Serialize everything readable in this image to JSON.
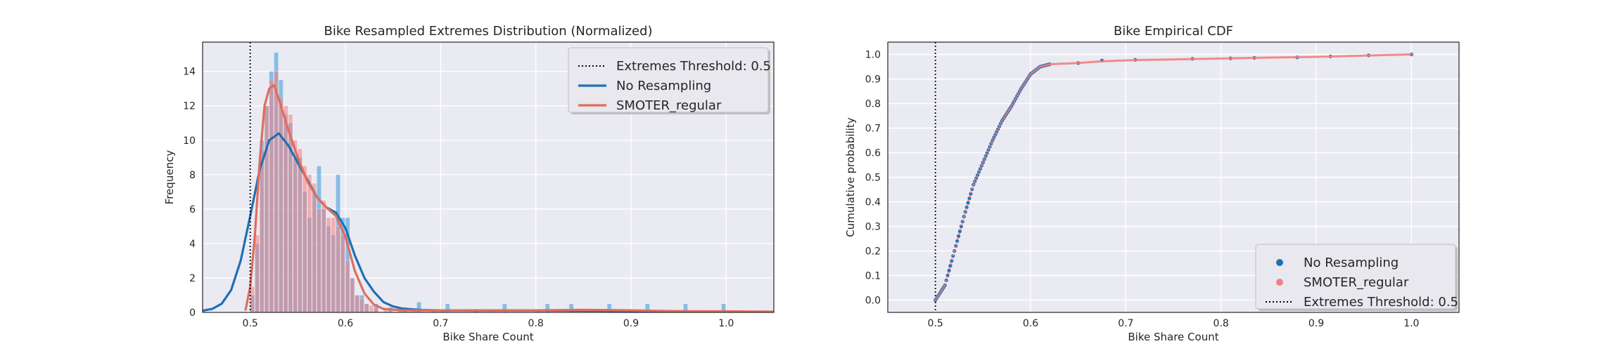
{
  "charts": [
    {
      "type": "histogram_kde",
      "title": "Bike Resampled Extremes Distribution (Normalized)",
      "xlabel": "Bike Share Count",
      "ylabel": "Frequency",
      "xlim": [
        0.45,
        1.05
      ],
      "ylim": [
        0,
        15.7
      ],
      "xticks": [
        0.5,
        0.6,
        0.7,
        0.8,
        0.9,
        1.0
      ],
      "xtick_labels": [
        "0.5",
        "0.6",
        "0.7",
        "0.8",
        "0.9",
        "1.0"
      ],
      "yticks": [
        0,
        2,
        4,
        6,
        8,
        10,
        12,
        14
      ],
      "ytick_labels": [
        "0",
        "2",
        "4",
        "6",
        "8",
        "10",
        "12",
        "14"
      ],
      "grid": true,
      "threshold": 0.5,
      "legend": {
        "position": "top-right",
        "entries": [
          "Extremes Threshold: 0.5",
          "No Resampling",
          "SMOTER_regular"
        ]
      },
      "histograms": [
        {
          "name": "No Resampling",
          "color": "#3498db",
          "bin_width": 0.005,
          "bins": [
            [
              0.5,
              1.0
            ],
            [
              0.505,
              4.0
            ],
            [
              0.51,
              10.0
            ],
            [
              0.515,
              12.0
            ],
            [
              0.52,
              14.0
            ],
            [
              0.525,
              15.1
            ],
            [
              0.53,
              13.5
            ],
            [
              0.535,
              11.5
            ],
            [
              0.54,
              11.0
            ],
            [
              0.545,
              9.0
            ],
            [
              0.55,
              9.0
            ],
            [
              0.555,
              7.0
            ],
            [
              0.56,
              5.5
            ],
            [
              0.565,
              7.0
            ],
            [
              0.57,
              8.5
            ],
            [
              0.575,
              6.0
            ],
            [
              0.58,
              5.0
            ],
            [
              0.585,
              4.5
            ],
            [
              0.59,
              8.0
            ],
            [
              0.595,
              5.5
            ],
            [
              0.6,
              5.5
            ],
            [
              0.605,
              2.0
            ],
            [
              0.61,
              1.0
            ],
            [
              0.615,
              1.0
            ],
            [
              0.62,
              0.5
            ],
            [
              0.63,
              0.5
            ],
            [
              0.645,
              0.3
            ],
            [
              0.66,
              0.3
            ],
            [
              0.675,
              0.6
            ],
            [
              0.69,
              0.2
            ],
            [
              0.705,
              0.5
            ],
            [
              0.735,
              0.2
            ],
            [
              0.765,
              0.5
            ],
            [
              0.81,
              0.5
            ],
            [
              0.835,
              0.5
            ],
            [
              0.875,
              0.5
            ],
            [
              0.915,
              0.5
            ],
            [
              0.955,
              0.5
            ],
            [
              0.995,
              0.5
            ]
          ]
        },
        {
          "name": "SMOTER_regular",
          "color": "#f08080",
          "bin_width": 0.005,
          "bins": [
            [
              0.5,
              1.5
            ],
            [
              0.505,
              4.5
            ],
            [
              0.51,
              9.5
            ],
            [
              0.515,
              12.0
            ],
            [
              0.52,
              13.5
            ],
            [
              0.525,
              14.0
            ],
            [
              0.53,
              12.5
            ],
            [
              0.535,
              12.0
            ],
            [
              0.54,
              11.5
            ],
            [
              0.545,
              10.0
            ],
            [
              0.55,
              9.5
            ],
            [
              0.555,
              8.5
            ],
            [
              0.56,
              8.0
            ],
            [
              0.565,
              7.5
            ],
            [
              0.57,
              6.0
            ],
            [
              0.575,
              6.5
            ],
            [
              0.58,
              5.5
            ],
            [
              0.585,
              5.5
            ],
            [
              0.59,
              5.0
            ],
            [
              0.595,
              4.5
            ],
            [
              0.6,
              3.0
            ],
            [
              0.605,
              2.0
            ],
            [
              0.61,
              1.0
            ],
            [
              0.615,
              0.8
            ],
            [
              0.62,
              0.5
            ],
            [
              0.625,
              0.4
            ],
            [
              0.63,
              0.3
            ],
            [
              0.64,
              0.2
            ],
            [
              0.655,
              0.2
            ],
            [
              0.67,
              0.15
            ],
            [
              0.7,
              0.1
            ],
            [
              0.75,
              0.1
            ],
            [
              0.8,
              0.1
            ],
            [
              0.85,
              0.15
            ],
            [
              0.9,
              0.1
            ],
            [
              0.95,
              0.1
            ],
            [
              1.0,
              0.1
            ]
          ]
        }
      ],
      "kde": [
        {
          "name": "No Resampling",
          "color": "#1f6fb4",
          "points": [
            [
              0.45,
              0.1
            ],
            [
              0.46,
              0.2
            ],
            [
              0.47,
              0.5
            ],
            [
              0.48,
              1.3
            ],
            [
              0.49,
              3.0
            ],
            [
              0.5,
              5.6
            ],
            [
              0.51,
              8.3
            ],
            [
              0.52,
              10.0
            ],
            [
              0.53,
              10.4
            ],
            [
              0.54,
              9.7
            ],
            [
              0.55,
              8.7
            ],
            [
              0.56,
              7.7
            ],
            [
              0.57,
              6.7
            ],
            [
              0.58,
              6.1
            ],
            [
              0.59,
              5.8
            ],
            [
              0.6,
              4.9
            ],
            [
              0.61,
              3.3
            ],
            [
              0.62,
              2.0
            ],
            [
              0.63,
              1.2
            ],
            [
              0.64,
              0.6
            ],
            [
              0.65,
              0.35
            ],
            [
              0.66,
              0.22
            ],
            [
              0.68,
              0.14
            ],
            [
              0.7,
              0.12
            ],
            [
              0.75,
              0.11
            ],
            [
              0.8,
              0.11
            ],
            [
              0.85,
              0.1
            ],
            [
              0.9,
              0.08
            ],
            [
              0.95,
              0.06
            ],
            [
              1.0,
              0.05
            ],
            [
              1.05,
              0.02
            ]
          ]
        },
        {
          "name": "SMOTER_regular",
          "color": "#e06c5c",
          "points": [
            [
              0.495,
              0.1
            ],
            [
              0.5,
              1.5
            ],
            [
              0.505,
              4.5
            ],
            [
              0.51,
              8.8
            ],
            [
              0.515,
              12.0
            ],
            [
              0.52,
              13.0
            ],
            [
              0.525,
              13.2
            ],
            [
              0.53,
              12.4
            ],
            [
              0.54,
              10.6
            ],
            [
              0.55,
              9.0
            ],
            [
              0.56,
              7.6
            ],
            [
              0.57,
              6.7
            ],
            [
              0.58,
              6.1
            ],
            [
              0.59,
              5.6
            ],
            [
              0.6,
              4.4
            ],
            [
              0.61,
              2.4
            ],
            [
              0.62,
              1.1
            ],
            [
              0.63,
              0.45
            ],
            [
              0.64,
              0.2
            ],
            [
              0.66,
              0.12
            ],
            [
              0.7,
              0.12
            ],
            [
              0.75,
              0.12
            ],
            [
              0.8,
              0.12
            ],
            [
              0.85,
              0.15
            ],
            [
              0.9,
              0.12
            ],
            [
              0.95,
              0.07
            ],
            [
              1.0,
              0.06
            ],
            [
              1.05,
              0.04
            ]
          ]
        }
      ]
    },
    {
      "type": "scatter",
      "title": "Bike Empirical CDF",
      "xlabel": "Bike Share Count",
      "ylabel": "Cumulative probability",
      "xlim": [
        0.45,
        1.05
      ],
      "ylim": [
        -0.05,
        1.05
      ],
      "xticks": [
        0.5,
        0.6,
        0.7,
        0.8,
        0.9,
        1.0
      ],
      "xtick_labels": [
        "0.5",
        "0.6",
        "0.7",
        "0.8",
        "0.9",
        "1.0"
      ],
      "yticks": [
        0.0,
        0.1,
        0.2,
        0.3,
        0.4,
        0.5,
        0.6,
        0.7,
        0.8,
        0.9,
        1.0
      ],
      "ytick_labels": [
        "0.0",
        "0.1",
        "0.2",
        "0.3",
        "0.4",
        "0.5",
        "0.6",
        "0.7",
        "0.8",
        "0.9",
        "1.0"
      ],
      "grid": true,
      "threshold": 0.5,
      "legend": {
        "position": "bottom-right",
        "entries": [
          "No Resampling",
          "SMOTER_regular",
          "Extremes Threshold: 0.5"
        ]
      },
      "series": [
        {
          "name": "No Resampling",
          "color": "#1f6fb4",
          "cdf_points": [
            [
              0.5,
              0.0
            ],
            [
              0.51,
              0.06
            ],
            [
              0.52,
              0.2
            ],
            [
              0.53,
              0.34
            ],
            [
              0.54,
              0.47
            ],
            [
              0.55,
              0.56
            ],
            [
              0.56,
              0.65
            ],
            [
              0.57,
              0.73
            ],
            [
              0.58,
              0.79
            ],
            [
              0.59,
              0.86
            ],
            [
              0.6,
              0.92
            ],
            [
              0.61,
              0.95
            ],
            [
              0.62,
              0.96
            ],
            [
              0.65,
              0.965
            ],
            [
              0.675,
              0.975
            ],
            [
              0.71,
              0.978
            ],
            [
              0.77,
              0.982
            ],
            [
              0.81,
              0.984
            ],
            [
              0.835,
              0.986
            ],
            [
              0.88,
              0.988
            ],
            [
              0.915,
              0.992
            ],
            [
              0.955,
              0.996
            ],
            [
              1.0,
              1.0
            ]
          ]
        },
        {
          "name": "SMOTER_regular",
          "color": "#f08080",
          "cdf_points": [
            [
              0.5,
              0.0
            ],
            [
              0.51,
              0.06
            ],
            [
              0.52,
              0.2
            ],
            [
              0.53,
              0.34
            ],
            [
              0.54,
              0.47
            ],
            [
              0.55,
              0.56
            ],
            [
              0.56,
              0.65
            ],
            [
              0.57,
              0.73
            ],
            [
              0.58,
              0.79
            ],
            [
              0.59,
              0.86
            ],
            [
              0.6,
              0.92
            ],
            [
              0.61,
              0.95
            ],
            [
              0.62,
              0.96
            ],
            [
              0.65,
              0.965
            ],
            [
              0.675,
              0.972
            ],
            [
              0.71,
              0.977
            ],
            [
              0.77,
              0.981
            ],
            [
              0.81,
              0.984
            ],
            [
              0.85,
              0.987
            ],
            [
              0.9,
              0.99
            ],
            [
              0.95,
              0.995
            ],
            [
              1.0,
              1.0
            ]
          ]
        }
      ],
      "threshold_label": "Extremes Threshold: 0.5"
    }
  ]
}
